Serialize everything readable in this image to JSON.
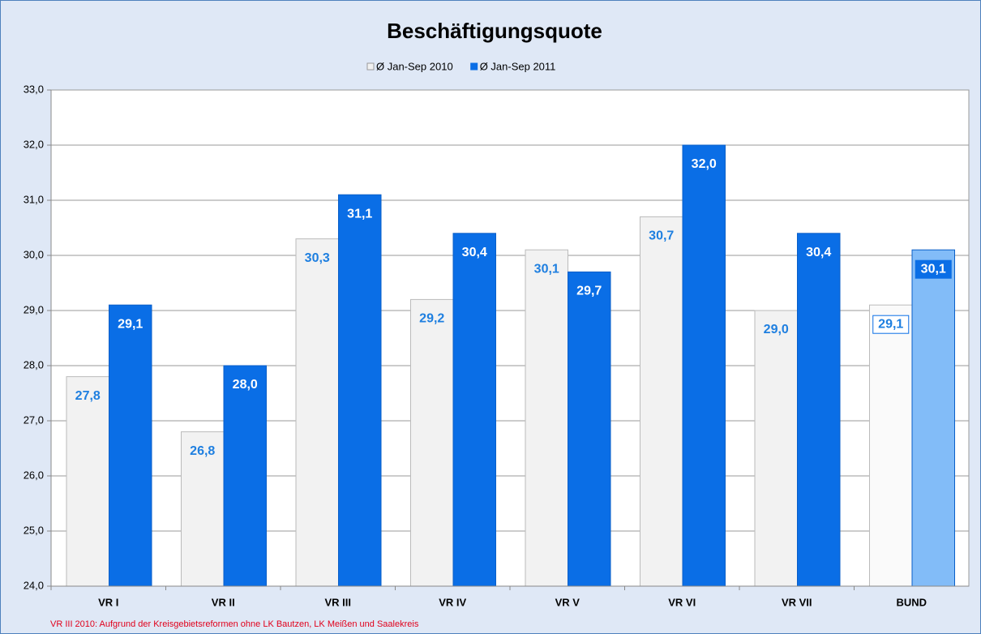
{
  "chart_data": {
    "type": "bar",
    "title": "Beschäftigungsquote",
    "categories": [
      "VR I",
      "VR II",
      "VR III",
      "VR IV",
      "VR V",
      "VR VI",
      "VR VII",
      "BUND"
    ],
    "series": [
      {
        "name": "Ø Jan-Sep 2010",
        "color": "#f2f2f2",
        "colors": [
          "#f2f2f2",
          "#f2f2f2",
          "#f2f2f2",
          "#f2f2f2",
          "#f2f2f2",
          "#f2f2f2",
          "#f2f2f2",
          "#fafafa"
        ],
        "values": [
          27.8,
          26.8,
          30.3,
          29.2,
          30.1,
          30.7,
          29.0,
          29.1
        ],
        "value_labels": [
          "27,8",
          "26,8",
          "30,3",
          "29,2",
          "30,1",
          "30,7",
          "29,0",
          "29,1"
        ]
      },
      {
        "name": "Ø Jan-Sep 2011",
        "color": "#0a6ee6",
        "colors": [
          "#0a6ee6",
          "#0a6ee6",
          "#0a6ee6",
          "#0a6ee6",
          "#0a6ee6",
          "#0a6ee6",
          "#0a6ee6",
          "#82bcf8"
        ],
        "values": [
          29.1,
          28.0,
          31.1,
          30.4,
          29.7,
          32.0,
          30.4,
          30.1
        ],
        "value_labels": [
          "29,1",
          "28,0",
          "31,1",
          "30,4",
          "29,7",
          "32,0",
          "30,4",
          "30,1"
        ]
      }
    ],
    "ylim": [
      24,
      33
    ],
    "yticks": [
      {
        "value": 24,
        "label": "24,0"
      },
      {
        "value": 25,
        "label": "25,0"
      },
      {
        "value": 26,
        "label": "26,0"
      },
      {
        "value": 27,
        "label": "27,0"
      },
      {
        "value": 28,
        "label": "28,0"
      },
      {
        "value": 29,
        "label": "29,0"
      },
      {
        "value": 30,
        "label": "30,0"
      },
      {
        "value": 31,
        "label": "31,0"
      },
      {
        "value": 32,
        "label": "32,0"
      },
      {
        "value": 33,
        "label": "33,0"
      }
    ],
    "grid": true,
    "legend": "top",
    "footnote": "VR III 2010: Aufgrund der Kreisgebietsreformen ohne LK Bautzen, LK Meißen und Saalekreis"
  }
}
